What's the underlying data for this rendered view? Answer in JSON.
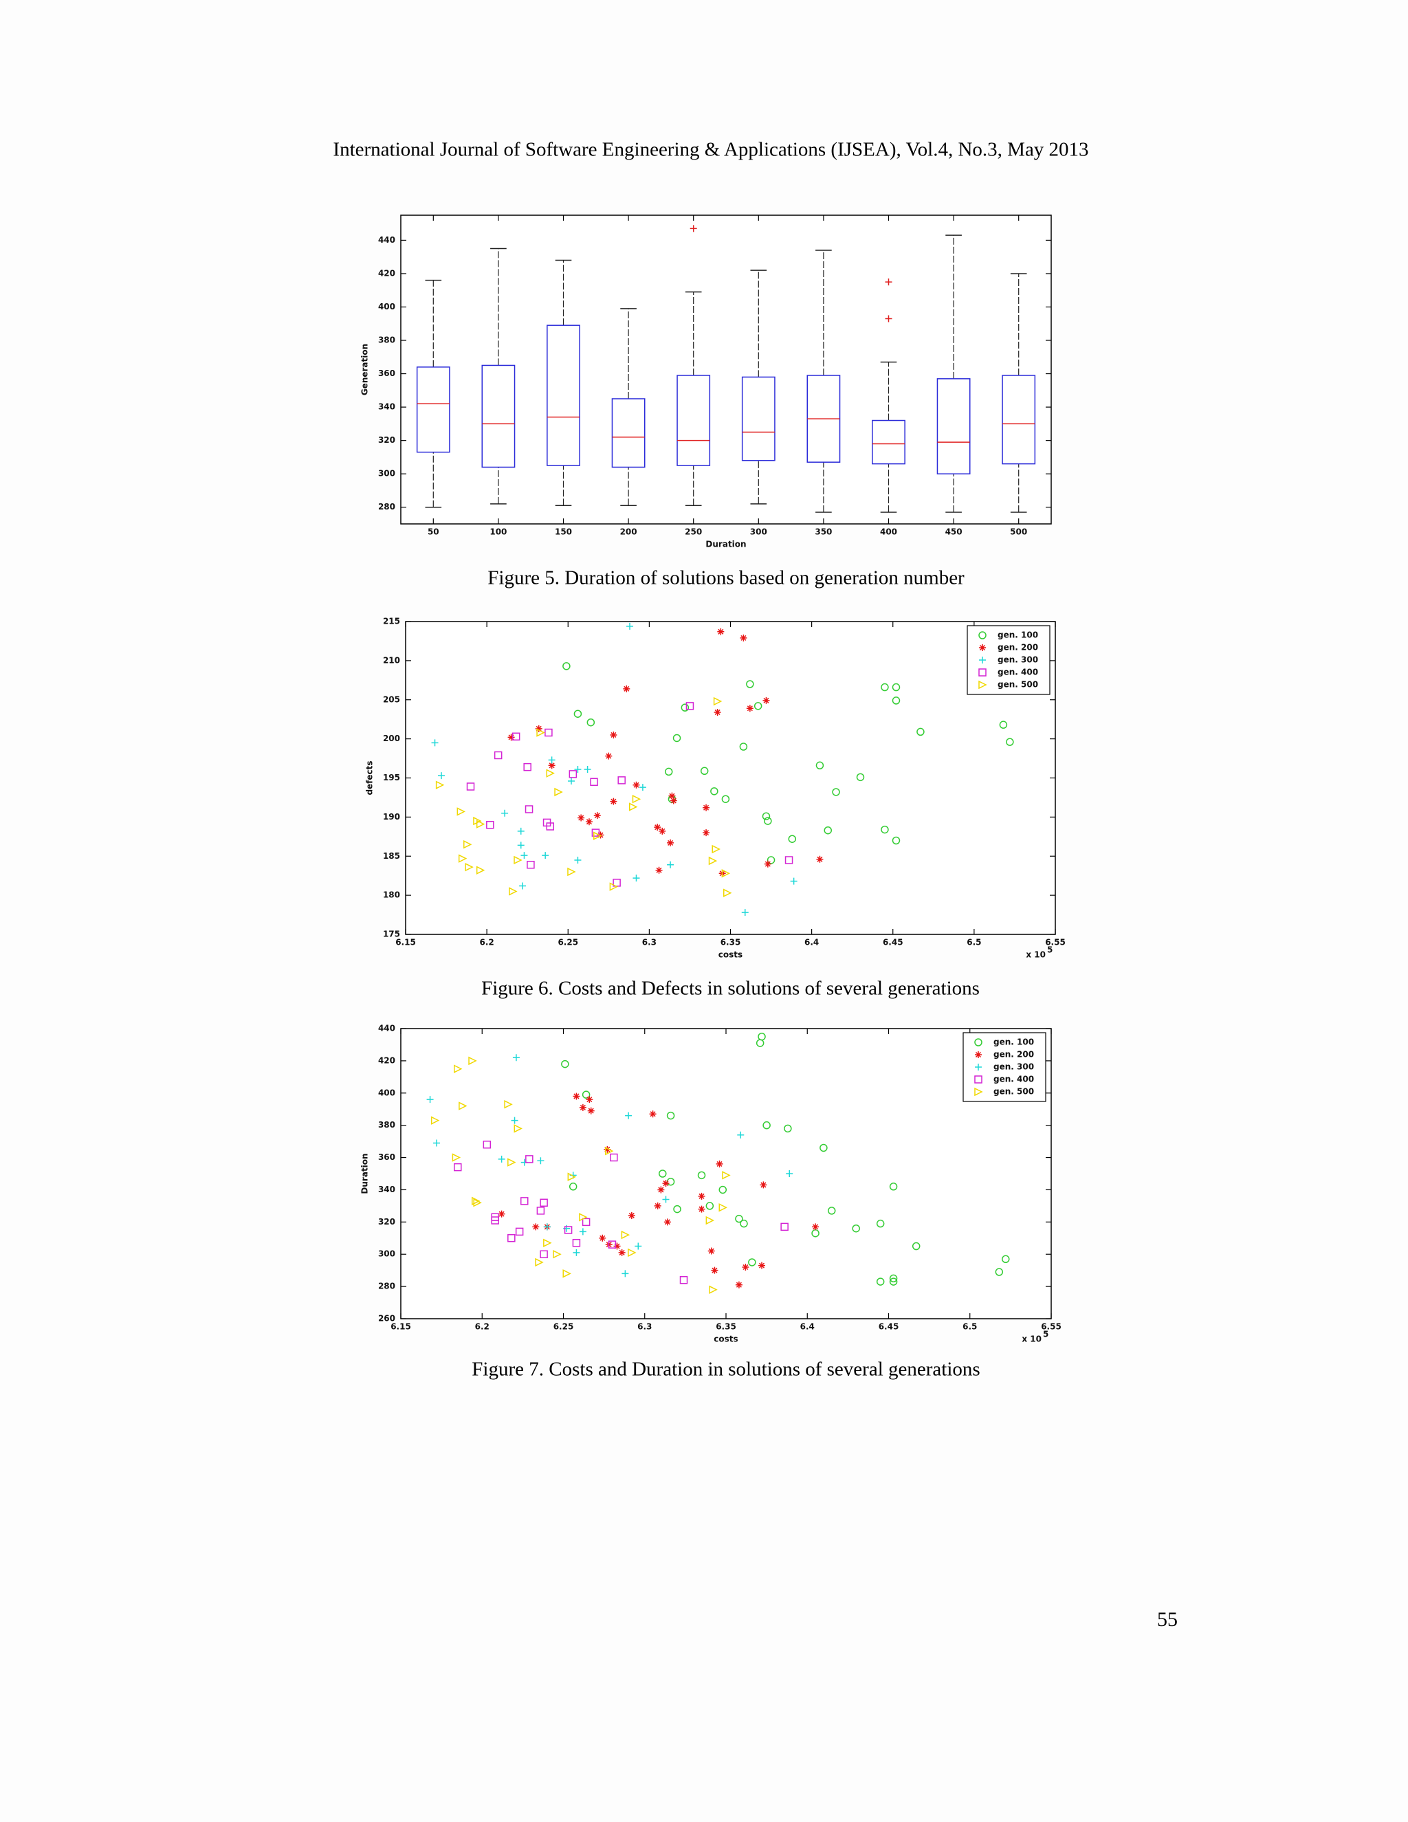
{
  "header": {
    "title": "International Journal of Software Engineering & Applications (IJSEA), Vol.4, No.3, May 2013"
  },
  "page_number": "55",
  "chart_data": [
    {
      "type": "box",
      "caption": "Figure 5.  Duration of solutions based on generation number",
      "x_label": "Duration",
      "y_label": "Generation",
      "categories": [
        "50",
        "100",
        "150",
        "200",
        "250",
        "300",
        "350",
        "400",
        "450",
        "500"
      ],
      "boxes": [
        {
          "min": 280,
          "q1": 313,
          "median": 342,
          "q3": 364,
          "max": 416,
          "outliers": []
        },
        {
          "min": 282,
          "q1": 304,
          "median": 330,
          "q3": 365,
          "max": 435,
          "outliers": []
        },
        {
          "min": 281,
          "q1": 305,
          "median": 334,
          "q3": 389,
          "max": 428,
          "outliers": []
        },
        {
          "min": 281,
          "q1": 304,
          "median": 322,
          "q3": 345,
          "max": 399,
          "outliers": []
        },
        {
          "min": 281,
          "q1": 305,
          "median": 320,
          "q3": 359,
          "max": 409,
          "outliers": [
            447
          ]
        },
        {
          "min": 282,
          "q1": 308,
          "median": 325,
          "q3": 358,
          "max": 422,
          "outliers": []
        },
        {
          "min": 277,
          "q1": 307,
          "median": 333,
          "q3": 359,
          "max": 434,
          "outliers": []
        },
        {
          "min": 277,
          "q1": 306,
          "median": 318,
          "q3": 332,
          "max": 367,
          "outliers": [
            393,
            415
          ]
        },
        {
          "min": 277,
          "q1": 300,
          "median": 319,
          "q3": 357,
          "max": 443,
          "outliers": []
        },
        {
          "min": 277,
          "q1": 306,
          "median": 330,
          "q3": 359,
          "max": 420,
          "outliers": []
        }
      ],
      "box_color": "#2b2bd9",
      "median_color": "#e02020",
      "whisker_color": "#222222",
      "outlier_color": "#e02020",
      "ylim": [
        270,
        455
      ],
      "yticks": [
        280,
        300,
        320,
        340,
        360,
        380,
        400,
        420,
        440
      ]
    },
    {
      "type": "scatter",
      "caption": "Figure 6. Costs and Defects in solutions of several generations",
      "x_label": "costs",
      "y_label": "defects",
      "offset_text": "x 10",
      "offset_exponent": "5",
      "legend": "upper right",
      "xlim": [
        6.15,
        6.55
      ],
      "xticks": [
        6.15,
        6.2,
        6.25,
        6.3,
        6.35,
        6.4,
        6.45,
        6.5,
        6.55
      ],
      "ylim": [
        175,
        215
      ],
      "yticks": [
        175,
        180,
        185,
        190,
        195,
        200,
        205,
        210,
        215
      ],
      "series": [
        {
          "name": "gen. 100",
          "color": "#33cc33",
          "marker": "o",
          "x": [
            6.249,
            6.256,
            6.264,
            6.317,
            6.322,
            6.312,
            6.334,
            6.34,
            6.347,
            6.358,
            6.362,
            6.367,
            6.373,
            6.372,
            6.375,
            6.388,
            6.405,
            6.41,
            6.415,
            6.43,
            6.445,
            6.452,
            6.452,
            6.445,
            6.452,
            6.467,
            6.518,
            6.522,
            6.314
          ],
          "y": [
            209.3,
            203.2,
            202.1,
            200.1,
            204.0,
            195.8,
            195.9,
            193.3,
            192.3,
            199.0,
            207.0,
            204.2,
            189.5,
            190.1,
            184.5,
            187.2,
            196.6,
            188.3,
            193.2,
            195.1,
            206.6,
            206.6,
            204.9,
            188.4,
            187.0,
            200.9,
            201.8,
            199.6,
            192.3
          ]
        },
        {
          "name": "gen. 200",
          "color": "#e81414",
          "marker": "*",
          "x": [
            6.232,
            6.215,
            6.24,
            6.258,
            6.263,
            6.268,
            6.27,
            6.278,
            6.275,
            6.278,
            6.286,
            6.292,
            6.305,
            6.308,
            6.313,
            6.314,
            6.315,
            6.306,
            6.335,
            6.335,
            6.342,
            6.344,
            6.345,
            6.358,
            6.362,
            6.372,
            6.373,
            6.405
          ],
          "y": [
            201.3,
            200.2,
            196.6,
            189.9,
            189.4,
            190.2,
            187.7,
            192.0,
            197.8,
            200.5,
            206.4,
            194.1,
            188.7,
            188.2,
            186.7,
            192.7,
            192.1,
            183.2,
            191.2,
            188.0,
            203.4,
            213.7,
            182.8,
            212.9,
            203.9,
            204.9,
            184.0,
            184.6
          ]
        },
        {
          "name": "gen. 300",
          "color": "#1ed8d8",
          "marker": "+",
          "x": [
            6.168,
            6.172,
            6.211,
            6.221,
            6.221,
            6.223,
            6.222,
            6.236,
            6.24,
            6.252,
            6.256,
            6.262,
            6.256,
            6.288,
            6.292,
            6.296,
            6.313,
            6.359,
            6.389
          ],
          "y": [
            199.5,
            195.3,
            190.5,
            188.2,
            186.4,
            185.1,
            181.2,
            185.1,
            197.3,
            194.6,
            196.1,
            196.1,
            184.5,
            214.4,
            182.2,
            193.8,
            183.9,
            177.8,
            181.8
          ]
        },
        {
          "name": "gen. 400",
          "color": "#d424d4",
          "marker": "s",
          "x": [
            6.218,
            6.207,
            6.19,
            6.202,
            6.225,
            6.226,
            6.238,
            6.237,
            6.239,
            6.227,
            6.253,
            6.266,
            6.267,
            6.28,
            6.283,
            6.325,
            6.386
          ],
          "y": [
            200.3,
            197.9,
            193.9,
            189.0,
            196.4,
            191.0,
            200.8,
            189.3,
            188.8,
            183.9,
            195.5,
            194.5,
            188.0,
            181.6,
            194.7,
            204.2,
            184.5
          ]
        },
        {
          "name": "gen. 500",
          "color": "#f0d800",
          "marker": ">",
          "x": [
            6.171,
            6.184,
            6.194,
            6.196,
            6.188,
            6.185,
            6.196,
            6.189,
            6.216,
            6.219,
            6.239,
            6.244,
            6.252,
            6.268,
            6.278,
            6.29,
            6.292,
            6.339,
            6.341,
            6.342,
            6.348,
            6.347,
            6.233
          ],
          "y": [
            194.1,
            190.7,
            189.5,
            189.1,
            186.5,
            184.7,
            183.2,
            183.6,
            180.5,
            184.5,
            195.6,
            193.2,
            183.0,
            187.6,
            181.1,
            191.3,
            192.3,
            184.4,
            185.9,
            204.8,
            180.3,
            182.8,
            200.8
          ]
        }
      ]
    },
    {
      "type": "scatter",
      "caption": "Figure 7. Costs and Duration in solutions of several generations",
      "x_label": "costs",
      "y_label": "Duration",
      "offset_text": "x 10",
      "offset_exponent": "5",
      "legend": "upper right",
      "xlim": [
        6.15,
        6.55
      ],
      "xticks": [
        6.15,
        6.2,
        6.25,
        6.3,
        6.35,
        6.4,
        6.45,
        6.5,
        6.55
      ],
      "ylim": [
        260,
        440
      ],
      "yticks": [
        260,
        280,
        300,
        320,
        340,
        360,
        380,
        400,
        420,
        440
      ],
      "series": [
        {
          "name": "gen. 100",
          "color": "#33cc33",
          "marker": "o",
          "x": [
            6.372,
            6.371,
            6.251,
            6.264,
            6.316,
            6.375,
            6.388,
            6.41,
            6.311,
            6.316,
            6.335,
            6.348,
            6.256,
            6.32,
            6.34,
            6.358,
            6.361,
            6.366,
            6.415,
            6.43,
            6.405,
            6.445,
            6.453,
            6.445,
            6.453,
            6.453,
            6.467,
            6.522,
            6.518
          ],
          "y": [
            435,
            431,
            418,
            399,
            386,
            380,
            378,
            366,
            350,
            345,
            349,
            340,
            342,
            328,
            330,
            322,
            319,
            295,
            327,
            316,
            313,
            319,
            342,
            283,
            283,
            285,
            305,
            297,
            289
          ]
        },
        {
          "name": "gen. 200",
          "color": "#e81414",
          "marker": "*",
          "x": [
            6.212,
            6.233,
            6.24,
            6.258,
            6.262,
            6.266,
            6.267,
            6.277,
            6.274,
            6.278,
            6.283,
            6.286,
            6.292,
            6.305,
            6.308,
            6.31,
            6.313,
            6.314,
            6.335,
            6.335,
            6.341,
            6.343,
            6.346,
            6.358,
            6.362,
            6.373,
            6.372,
            6.405
          ],
          "y": [
            325,
            317,
            317,
            398,
            391,
            396,
            389,
            365,
            310,
            306,
            305,
            301,
            324,
            387,
            330,
            340,
            344,
            320,
            336,
            328,
            302,
            290,
            356,
            281,
            292,
            343,
            293,
            317
          ]
        },
        {
          "name": "gen. 300",
          "color": "#1ed8d8",
          "marker": "+",
          "x": [
            6.168,
            6.172,
            6.212,
            6.22,
            6.221,
            6.236,
            6.24,
            6.252,
            6.256,
            6.258,
            6.262,
            6.29,
            6.296,
            6.313,
            6.359,
            6.389,
            6.288,
            6.226
          ],
          "y": [
            396,
            369,
            359,
            383,
            422,
            358,
            317,
            316,
            349,
            301,
            314,
            386,
            305,
            334,
            374,
            350,
            288,
            357
          ]
        },
        {
          "name": "gen. 400",
          "color": "#d424d4",
          "marker": "s",
          "x": [
            6.185,
            6.203,
            6.208,
            6.208,
            6.218,
            6.223,
            6.226,
            6.229,
            6.236,
            6.238,
            6.238,
            6.253,
            6.258,
            6.264,
            6.28,
            6.281,
            6.324,
            6.386
          ],
          "y": [
            354,
            368,
            323,
            321,
            310,
            314,
            333,
            359,
            327,
            332,
            300,
            315,
            307,
            320,
            306,
            360,
            284,
            317
          ]
        },
        {
          "name": "gen. 500",
          "color": "#f0d800",
          "marker": ">",
          "x": [
            6.171,
            6.184,
            6.188,
            6.194,
            6.196,
            6.197,
            6.218,
            6.222,
            6.24,
            6.235,
            6.246,
            6.255,
            6.252,
            6.262,
            6.278,
            6.288,
            6.292,
            6.34,
            6.342,
            6.35,
            6.348,
            6.185,
            6.216
          ],
          "y": [
            383,
            360,
            392,
            420,
            333,
            332,
            357,
            378,
            307,
            295,
            300,
            348,
            288,
            323,
            364,
            312,
            301,
            321,
            278,
            349,
            329,
            415,
            393
          ]
        }
      ]
    }
  ]
}
